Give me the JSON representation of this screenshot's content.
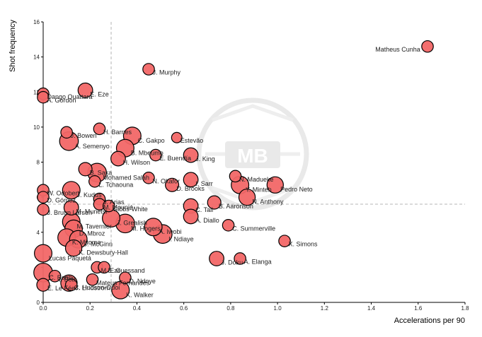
{
  "chart_data": {
    "type": "scatter",
    "title": "",
    "xlabel": "Accelerations per 90",
    "ylabel": "Shot frequency",
    "xlim": [
      0,
      1.8
    ],
    "ylim": [
      0,
      16
    ],
    "xticks": [
      "0.0",
      "0.2",
      "0.4",
      "0.6",
      "0.8",
      "1.0",
      "1.2",
      "1.4",
      "1.6",
      "1.8"
    ],
    "yticks": [
      "0",
      "2",
      "4",
      "6",
      "8",
      "10",
      "12",
      "14",
      "16"
    ],
    "reference_lines": {
      "x": 0.29,
      "y": 5.6
    },
    "colors": {
      "point_fill": "#f26767",
      "point_stroke": "#000000",
      "reference": "#b5b5b5",
      "watermark": "#e6e6e6"
    },
    "points": [
      {
        "name": "Matheus Cunha",
        "x": 1.64,
        "y": 14.6,
        "size": 1
      },
      {
        "name": "J. Murphy",
        "x": 0.45,
        "y": 13.3,
        "size": 1
      },
      {
        "name": "Dango Ouattara",
        "x": 0.0,
        "y": 11.9,
        "size": 1
      },
      {
        "name": "E. Eze",
        "x": 0.18,
        "y": 12.1,
        "size": 1.5
      },
      {
        "name": "A. Gordon",
        "x": 0.0,
        "y": 11.7,
        "size": 1
      },
      {
        "name": "J. Bowen",
        "x": 0.1,
        "y": 9.7,
        "size": 1
      },
      {
        "name": "H. Barnes",
        "x": 0.24,
        "y": 9.9,
        "size": 1
      },
      {
        "name": "C. Gakpo",
        "x": 0.38,
        "y": 9.5,
        "size": 2
      },
      {
        "name": "Estevão",
        "x": 0.57,
        "y": 9.4,
        "size": 0.8
      },
      {
        "name": "A. Semenyo",
        "x": 0.11,
        "y": 9.2,
        "size": 2.2
      },
      {
        "name": "B. Mbeumo",
        "x": 0.35,
        "y": 8.8,
        "size": 2
      },
      {
        "name": "E. Buendía",
        "x": 0.48,
        "y": 8.4,
        "size": 1
      },
      {
        "name": "J. King",
        "x": 0.63,
        "y": 8.4,
        "size": 1.5
      },
      {
        "name": "H. Wilson",
        "x": 0.32,
        "y": 8.2,
        "size": 1.5
      },
      {
        "name": "B. Saka",
        "x": 0.18,
        "y": 7.6,
        "size": 1.3
      },
      {
        "name": "Mohamed Salah",
        "x": 0.23,
        "y": 7.4,
        "size": 2.2
      },
      {
        "name": "N. Madueke",
        "x": 0.82,
        "y": 7.2,
        "size": 1
      },
      {
        "name": "N. Okafor",
        "x": 0.45,
        "y": 7.1,
        "size": 1
      },
      {
        "name": "I. Sarr",
        "x": 0.63,
        "y": 7.0,
        "size": 1.5
      },
      {
        "name": "L. Tchaouna",
        "x": 0.22,
        "y": 6.9,
        "size": 1
      },
      {
        "name": "D. Brooks",
        "x": 0.55,
        "y": 6.7,
        "size": 1.3
      },
      {
        "name": "Y. Minteh",
        "x": 0.84,
        "y": 6.7,
        "size": 2
      },
      {
        "name": "Pedro Neto",
        "x": 0.99,
        "y": 6.7,
        "size": 1.8
      },
      {
        "name": "W. Odobert",
        "x": 0.0,
        "y": 6.4,
        "size": 1
      },
      {
        "name": "J. Kudus",
        "x": 0.12,
        "y": 6.4,
        "size": 2
      },
      {
        "name": "D. Gómez",
        "x": 0.0,
        "y": 6.0,
        "size": 1
      },
      {
        "name": "J. Arias",
        "x": 0.24,
        "y": 5.9,
        "size": 1
      },
      {
        "name": "N. Anthony",
        "x": 0.87,
        "y": 6.0,
        "size": 1.8
      },
      {
        "name": "B. Aaronson",
        "x": 0.73,
        "y": 5.7,
        "size": 1.3
      },
      {
        "name": "M. Mounié",
        "x": 0.24,
        "y": 5.6,
        "size": 1
      },
      {
        "name": "Gibbs-White",
        "x": 0.28,
        "y": 5.5,
        "size": 1
      },
      {
        "name": "C. Tall",
        "x": 0.63,
        "y": 5.5,
        "size": 1.5
      },
      {
        "name": "M. Munetsi",
        "x": 0.12,
        "y": 5.4,
        "size": 1.5
      },
      {
        "name": "J. Bruun Larsen",
        "x": 0.0,
        "y": 5.3,
        "size": 1
      },
      {
        "name": "A. Diallo",
        "x": 0.63,
        "y": 4.9,
        "size": 1.5
      },
      {
        "name": "J. Grealish",
        "x": 0.29,
        "y": 4.8,
        "size": 2
      },
      {
        "name": "M. Tavernier",
        "x": 0.12,
        "y": 4.6,
        "size": 2
      },
      {
        "name": "M. Hogers",
        "x": 0.35,
        "y": 4.5,
        "size": 2.2
      },
      {
        "name": "C. Summerville",
        "x": 0.79,
        "y": 4.4,
        "size": 1
      },
      {
        "name": "D. Mbroz",
        "x": 0.13,
        "y": 4.2,
        "size": 2
      },
      {
        "name": "A. Iwobi",
        "x": 0.47,
        "y": 4.3,
        "size": 2
      },
      {
        "name": "I. Ndiaye",
        "x": 0.51,
        "y": 3.9,
        "size": 2.2
      },
      {
        "name": "K. Mitoma",
        "x": 0.1,
        "y": 3.7,
        "size": 2
      },
      {
        "name": "J. McGinn",
        "x": 0.15,
        "y": 3.6,
        "size": 2
      },
      {
        "name": "X. Simons",
        "x": 1.03,
        "y": 3.5,
        "size": 1
      },
      {
        "name": "K. Dewsbury-Hall",
        "x": 0.13,
        "y": 3.1,
        "size": 1.8
      },
      {
        "name": "Lucas Paquetá",
        "x": 0.0,
        "y": 2.8,
        "size": 2
      },
      {
        "name": "A. Elanga",
        "x": 0.84,
        "y": 2.5,
        "size": 1
      },
      {
        "name": "J. Doku",
        "x": 0.74,
        "y": 2.5,
        "size": 1.5
      },
      {
        "name": "M. Eze",
        "x": 0.23,
        "y": 2.0,
        "size": 1
      },
      {
        "name": "E. Guessand",
        "x": 0.26,
        "y": 2.0,
        "size": 1
      },
      {
        "name": "C. Bobb",
        "x": 0.0,
        "y": 1.7,
        "size": 2.2
      },
      {
        "name": "I. Bob",
        "x": 0.05,
        "y": 1.5,
        "size": 1
      },
      {
        "name": "D. Ndoye",
        "x": 0.35,
        "y": 1.4,
        "size": 1
      },
      {
        "name": "Mateus Fernandes",
        "x": 0.21,
        "y": 1.3,
        "size": 1
      },
      {
        "name": "E. Le Fée",
        "x": 0.0,
        "y": 1.0,
        "size": 1.2
      },
      {
        "name": "C. Hudson-Odoi",
        "x": 0.11,
        "y": 1.1,
        "size": 1.8
      },
      {
        "name": "J. Lindstrom",
        "x": 0.12,
        "y": 1.0,
        "size": 1
      },
      {
        "name": "K. Walker",
        "x": 0.33,
        "y": 0.7,
        "size": 2
      }
    ]
  }
}
